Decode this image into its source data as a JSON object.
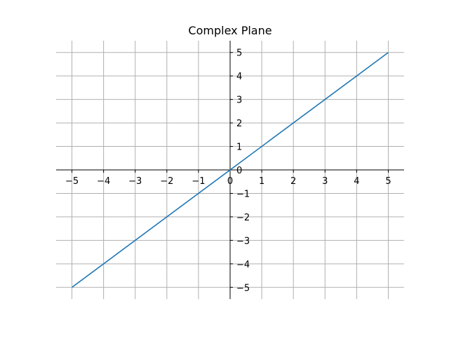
{
  "chart_data": {
    "type": "line",
    "title": "Complex Plane",
    "xlabel": "",
    "ylabel": "",
    "xlim": [
      -5.5,
      5.5
    ],
    "ylim": [
      -5.5,
      5.5
    ],
    "xticks": [
      -5,
      -4,
      -3,
      -2,
      -1,
      0,
      1,
      2,
      3,
      4,
      5
    ],
    "yticks": [
      -5,
      -4,
      -3,
      -2,
      -1,
      0,
      1,
      2,
      3,
      4,
      5
    ],
    "xtick_labels": [
      "−5",
      "−4",
      "−3",
      "−2",
      "−1",
      "0",
      "1",
      "2",
      "3",
      "4",
      "5"
    ],
    "ytick_labels": [
      "−5",
      "−4",
      "−3",
      "−2",
      "−1",
      "0",
      "1",
      "2",
      "3",
      "4",
      "5"
    ],
    "grid": true,
    "spines": "centered-at-origin",
    "series": [
      {
        "color": "#1f77b4",
        "x": [
          -5,
          5
        ],
        "y": [
          -5,
          5
        ]
      }
    ]
  }
}
